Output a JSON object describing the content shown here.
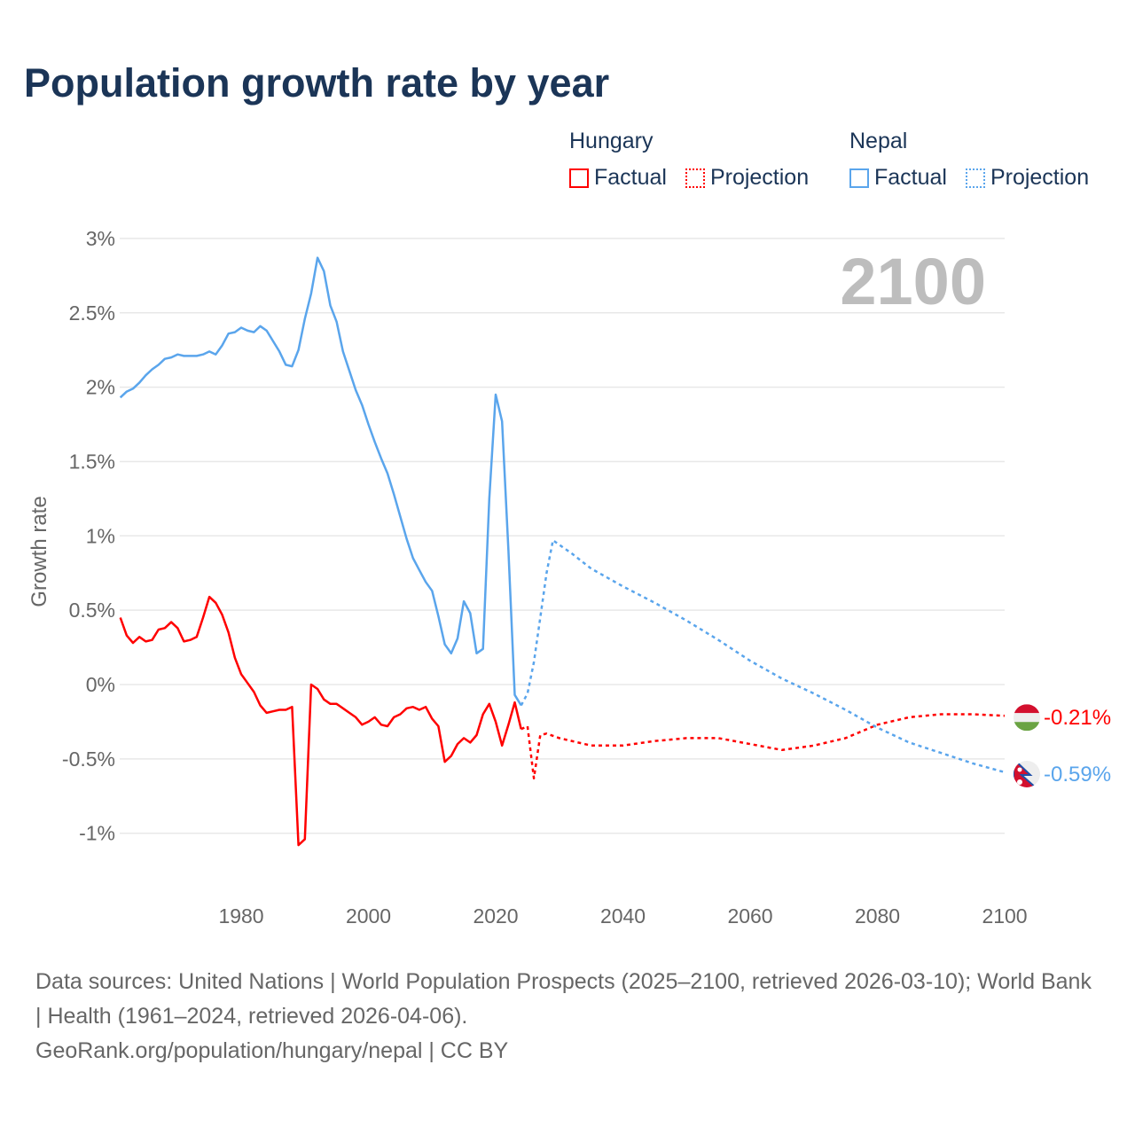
{
  "title": "Population growth rate by year",
  "legend": {
    "groups": [
      {
        "country": "Hungary",
        "factual": "Factual",
        "projection": "Projection",
        "color": "#ff0000"
      },
      {
        "country": "Nepal",
        "factual": "Factual",
        "projection": "Projection",
        "color": "#5aa5ec"
      }
    ]
  },
  "year_label": "2100",
  "footer": {
    "line1": "Data sources: United Nations | World Population Prospects (2025–2100, retrieved 2026-03-10); World Bank | Health (1961–2024, retrieved 2026-04-06).",
    "line2": "GeoRank.org/population/hungary/nepal | CC BY"
  },
  "chart_data": {
    "type": "line",
    "title": "Population growth rate by year",
    "xlabel": "",
    "ylabel": "Growth rate",
    "xlim": [
      1961,
      2100
    ],
    "ylim": [
      -1.25,
      3
    ],
    "yticks": [
      3,
      2.5,
      2,
      1.5,
      1,
      0.5,
      0,
      -0.5,
      -1
    ],
    "ytick_labels": [
      "3%",
      "2.5%",
      "2%",
      "1.5%",
      "1%",
      "0.5%",
      "0%",
      "-0.5%",
      "-1%"
    ],
    "xticks": [
      1980,
      2000,
      2020,
      2040,
      2060,
      2080,
      2100
    ],
    "xtick_labels": [
      "1980",
      "2000",
      "2020",
      "2040",
      "2060",
      "2080",
      "2100"
    ],
    "grid": true,
    "legend_position": "top-right",
    "series": [
      {
        "name": "Hungary",
        "kind": "factual",
        "color": "#ff0000",
        "x": [
          1961,
          1962,
          1963,
          1964,
          1965,
          1966,
          1967,
          1968,
          1969,
          1970,
          1971,
          1972,
          1973,
          1974,
          1975,
          1976,
          1977,
          1978,
          1979,
          1980,
          1981,
          1982,
          1983,
          1984,
          1985,
          1986,
          1987,
          1988,
          1989,
          1990,
          1991,
          1992,
          1993,
          1994,
          1995,
          1996,
          1997,
          1998,
          1999,
          2000,
          2001,
          2002,
          2003,
          2004,
          2005,
          2006,
          2007,
          2008,
          2009,
          2010,
          2011,
          2012,
          2013,
          2014,
          2015,
          2016,
          2017,
          2018,
          2019,
          2020,
          2021,
          2022,
          2023,
          2024
        ],
        "y": [
          0.45,
          0.33,
          0.28,
          0.32,
          0.29,
          0.3,
          0.37,
          0.38,
          0.42,
          0.38,
          0.29,
          0.3,
          0.32,
          0.45,
          0.59,
          0.55,
          0.47,
          0.35,
          0.18,
          0.07,
          0.01,
          -0.05,
          -0.14,
          -0.19,
          -0.18,
          -0.17,
          -0.17,
          -0.15,
          -1.08,
          -1.04,
          0.0,
          -0.03,
          -0.1,
          -0.13,
          -0.13,
          -0.16,
          -0.19,
          -0.22,
          -0.27,
          -0.25,
          -0.22,
          -0.27,
          -0.28,
          -0.22,
          -0.2,
          -0.16,
          -0.15,
          -0.17,
          -0.15,
          -0.23,
          -0.28,
          -0.52,
          -0.48,
          -0.4,
          -0.36,
          -0.39,
          -0.34,
          -0.2,
          -0.13,
          -0.25,
          -0.41,
          -0.27,
          -0.12,
          -0.3
        ]
      },
      {
        "name": "Hungary",
        "kind": "projection",
        "color": "#ff0000",
        "x": [
          2024,
          2025,
          2026,
          2027,
          2028,
          2030,
          2035,
          2040,
          2045,
          2050,
          2055,
          2060,
          2065,
          2070,
          2075,
          2080,
          2085,
          2090,
          2095,
          2100
        ],
        "y": [
          -0.3,
          -0.28,
          -0.63,
          -0.34,
          -0.33,
          -0.36,
          -0.41,
          -0.41,
          -0.38,
          -0.36,
          -0.36,
          -0.4,
          -0.44,
          -0.41,
          -0.36,
          -0.27,
          -0.22,
          -0.2,
          -0.2,
          -0.21
        ]
      },
      {
        "name": "Nepal",
        "kind": "factual",
        "color": "#5aa5ec",
        "x": [
          1961,
          1962,
          1963,
          1964,
          1965,
          1966,
          1967,
          1968,
          1969,
          1970,
          1971,
          1972,
          1973,
          1974,
          1975,
          1976,
          1977,
          1978,
          1979,
          1980,
          1981,
          1982,
          1983,
          1984,
          1985,
          1986,
          1987,
          1988,
          1989,
          1990,
          1991,
          1992,
          1993,
          1994,
          1995,
          1996,
          1997,
          1998,
          1999,
          2000,
          2001,
          2002,
          2003,
          2004,
          2005,
          2006,
          2007,
          2008,
          2009,
          2010,
          2011,
          2012,
          2013,
          2014,
          2015,
          2016,
          2017,
          2018,
          2019,
          2020,
          2021,
          2022,
          2023,
          2024
        ],
        "y": [
          1.93,
          1.97,
          1.99,
          2.03,
          2.08,
          2.12,
          2.15,
          2.19,
          2.2,
          2.22,
          2.21,
          2.21,
          2.21,
          2.22,
          2.24,
          2.22,
          2.28,
          2.36,
          2.37,
          2.4,
          2.38,
          2.37,
          2.41,
          2.38,
          2.31,
          2.24,
          2.15,
          2.14,
          2.25,
          2.46,
          2.63,
          2.87,
          2.78,
          2.55,
          2.44,
          2.24,
          2.11,
          1.98,
          1.88,
          1.75,
          1.63,
          1.52,
          1.42,
          1.28,
          1.13,
          0.98,
          0.85,
          0.77,
          0.69,
          0.63,
          0.46,
          0.27,
          0.21,
          0.31,
          0.56,
          0.48,
          0.21,
          0.24,
          1.25,
          1.95,
          1.77,
          0.9,
          -0.07,
          -0.14
        ]
      },
      {
        "name": "Nepal",
        "kind": "projection",
        "color": "#5aa5ec",
        "x": [
          2024,
          2025,
          2026,
          2027,
          2028,
          2029,
          2030,
          2032,
          2035,
          2040,
          2045,
          2050,
          2055,
          2060,
          2065,
          2070,
          2075,
          2080,
          2085,
          2090,
          2095,
          2100
        ],
        "y": [
          -0.14,
          -0.06,
          0.15,
          0.45,
          0.75,
          0.97,
          0.94,
          0.88,
          0.78,
          0.66,
          0.55,
          0.43,
          0.3,
          0.16,
          0.04,
          -0.06,
          -0.17,
          -0.29,
          -0.39,
          -0.46,
          -0.53,
          -0.59
        ]
      }
    ],
    "end_labels": [
      {
        "country": "Hungary",
        "value": -0.21,
        "text": "-0.21%",
        "color": "#ff0000"
      },
      {
        "country": "Nepal",
        "value": -0.59,
        "text": "-0.59%",
        "color": "#5aa5ec"
      }
    ]
  }
}
